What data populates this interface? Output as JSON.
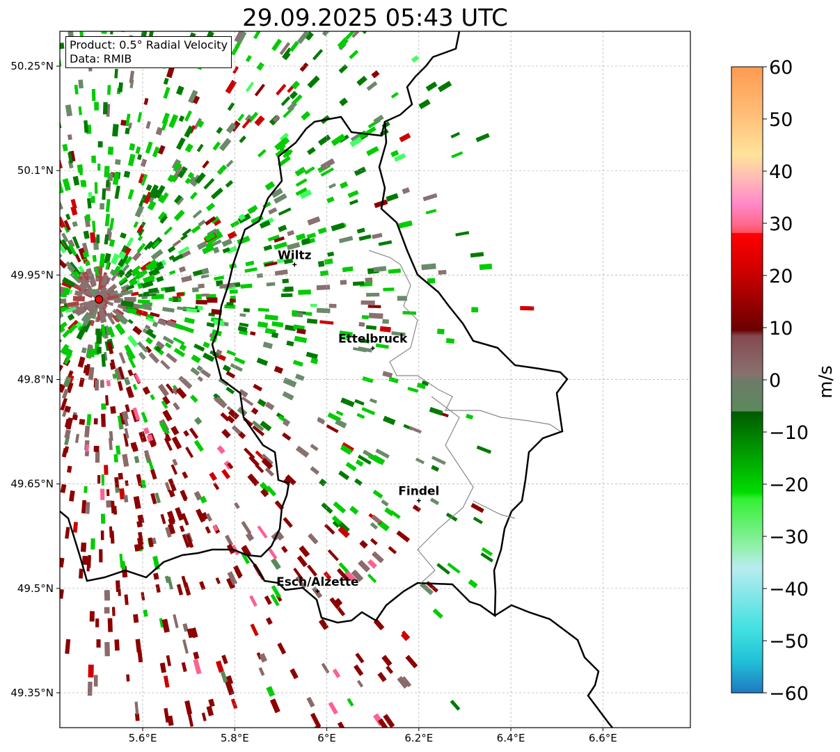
{
  "title": "29.09.2025 05:43 UTC",
  "info": {
    "product": "Product: 0.5° Radial Velocity",
    "data_source": "Data: RMIB"
  },
  "map": {
    "lon_range": [
      5.42,
      6.79
    ],
    "lat_range": [
      49.3,
      50.3
    ],
    "lon_ticks": [
      "5.6°E",
      "5.8°E",
      "6°E",
      "6.2°E",
      "6.4°E",
      "6.6°E"
    ],
    "lat_ticks": [
      "50.25°N",
      "50.1°N",
      "49.95°N",
      "49.8°N",
      "49.65°N",
      "49.5°N",
      "49.35°N"
    ],
    "gridlines": true,
    "radar_site": {
      "lon": 5.505,
      "lat": 49.915,
      "color": "#ff0000"
    },
    "cities": [
      {
        "name": "Wiltz",
        "lon": 5.93,
        "lat": 49.965
      },
      {
        "name": "Ettelbruck",
        "lon": 6.1,
        "lat": 49.845
      },
      {
        "name": "Findel",
        "lon": 6.2,
        "lat": 49.626
      },
      {
        "name": "Esch/Alzette",
        "lon": 5.98,
        "lat": 49.496
      }
    ]
  },
  "colorbar": {
    "unit": "m/s",
    "min": -60,
    "max": 60,
    "ticks": [
      "60",
      "50",
      "40",
      "30",
      "20",
      "10",
      "0",
      "−10",
      "−20",
      "−30",
      "−40",
      "−50",
      "−60"
    ]
  },
  "colors": {
    "inbound_strong": "#00cc00",
    "inbound_weak": "#007a00",
    "near_zero": "#8a7070",
    "outbound": "#8b0000",
    "border": "#000000"
  }
}
